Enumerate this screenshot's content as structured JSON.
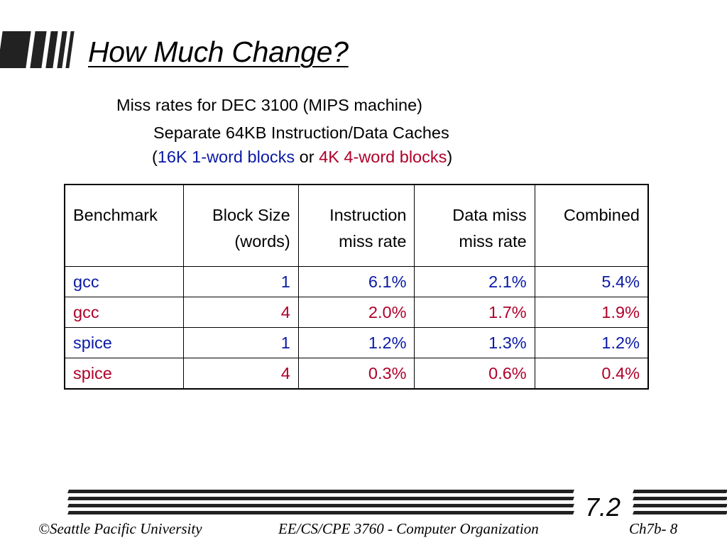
{
  "slide": {
    "title": "How Much Change?",
    "subtitle": "Miss rates for DEC 3100 (MIPS machine)",
    "line2": "Separate 64KB Instruction/Data Caches",
    "line3": {
      "open": "(",
      "blue_text": "16K 1-word blocks",
      "middle": " or ",
      "red_text": "4K 4-word blocks",
      "close": ")"
    }
  },
  "table": {
    "headers": [
      {
        "line1": "Benchmark",
        "line2": ""
      },
      {
        "line1": "Block Size",
        "line2": "(words)"
      },
      {
        "line1": "Instruction",
        "line2": "miss rate"
      },
      {
        "line1": "Data miss",
        "line2": "miss rate"
      },
      {
        "line1": "Combined",
        "line2": ""
      }
    ],
    "rows": [
      {
        "benchmark": "gcc",
        "block_size": "1",
        "instruction": "6.1%",
        "data": "2.1%",
        "combined": "5.4%",
        "color": "blue"
      },
      {
        "benchmark": "gcc",
        "block_size": "4",
        "instruction": "2.0%",
        "data": "1.7%",
        "combined": "1.9%",
        "color": "red"
      },
      {
        "benchmark": "spice",
        "block_size": "1",
        "instruction": "1.2%",
        "data": "1.3%",
        "combined": "1.2%",
        "color": "blue"
      },
      {
        "benchmark": "spice",
        "block_size": "4",
        "instruction": "0.3%",
        "data": "0.6%",
        "combined": "0.4%",
        "color": "red"
      }
    ]
  },
  "footer": {
    "section": "7.2",
    "copyright": "©Seattle Pacific University",
    "course": "EE/CS/CPE 3760 - Computer Organization",
    "page": "Ch7b- 8"
  },
  "colors": {
    "blue": "#0a1aa6",
    "red": "#b0002a"
  }
}
